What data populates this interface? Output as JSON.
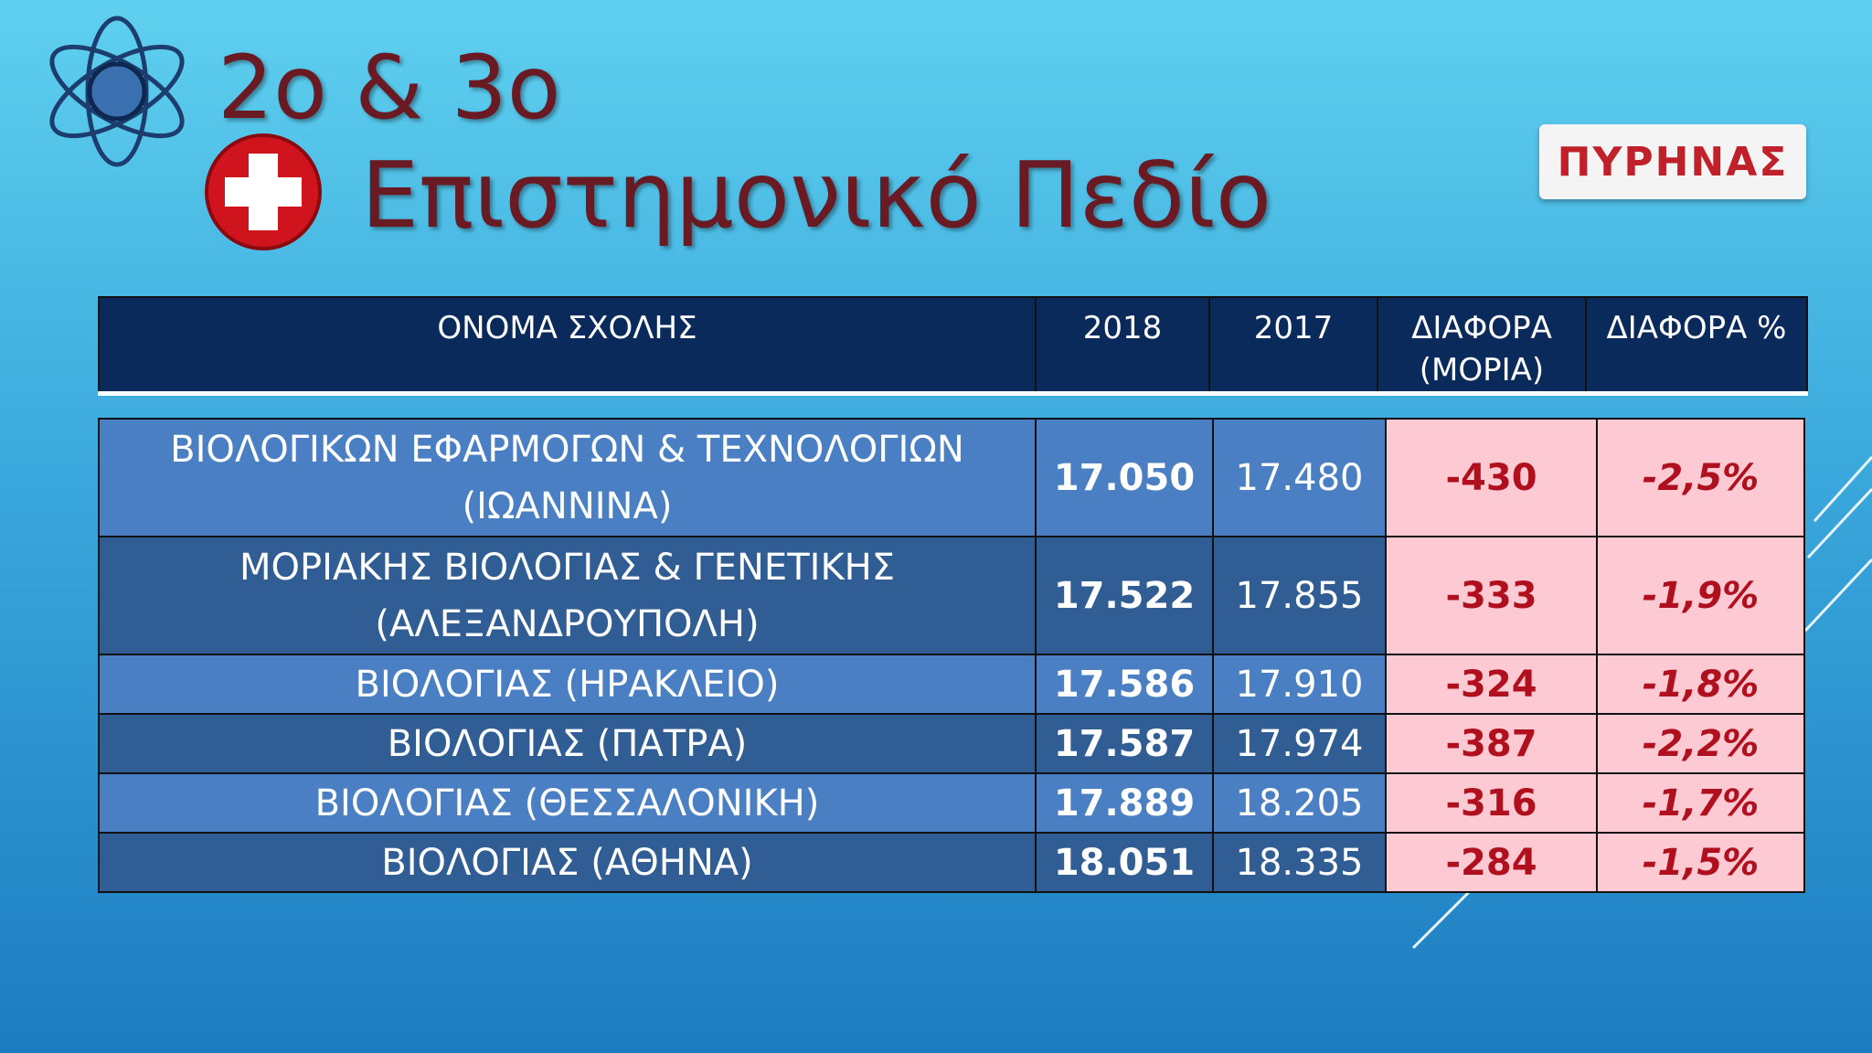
{
  "header": {
    "title_line1": "2ο & 3ο",
    "title_line2": "Επιστημονικό Πεδίο",
    "logo": "ΠΥΡΗΝΑΣ"
  },
  "table": {
    "columns": [
      "ΟΝΟΜΑ ΣΧΟΛΗΣ",
      "2018",
      "2017",
      "ΔΙΑΦΟΡΑ (ΜΟΡΙΑ)",
      "ΔΙΑΦΟΡΑ %"
    ],
    "rows": [
      [
        "ΒΙΟΛΟΓΙΚΩΝ ΕΦΑΡΜΟΓΩΝ & ΤΕΧΝΟΛΟΓΙΩΝ (ΙΩΑΝΝΙΝΑ)",
        "17.050",
        "17.480",
        "-430",
        "-2,5%"
      ],
      [
        "ΜΟΡΙΑΚΗΣ ΒΙΟΛΟΓΙΑΣ & ΓΕΝΕΤΙΚΗΣ (ΑΛΕΞΑΝΔΡΟΥΠΟΛΗ)",
        "17.522",
        "17.855",
        "-333",
        "-1,9%"
      ],
      [
        "ΒΙΟΛΟΓΙΑΣ (ΗΡΑΚΛΕΙΟ)",
        "17.586",
        "17.910",
        "-324",
        "-1,8%"
      ],
      [
        "ΒΙΟΛΟΓΙΑΣ (ΠΑΤΡΑ)",
        "17.587",
        "17.974",
        "-387",
        "-2,2%"
      ],
      [
        "ΒΙΟΛΟΓΙΑΣ (ΘΕΣΣΑΛΟΝΙΚΗ)",
        "17.889",
        "18.205",
        "-316",
        "-1,7%"
      ],
      [
        "ΒΙΟΛΟΓΙΑΣ (ΑΘΗΝΑ)",
        "18.051",
        "18.335",
        "-284",
        "-1,5%"
      ]
    ]
  }
}
